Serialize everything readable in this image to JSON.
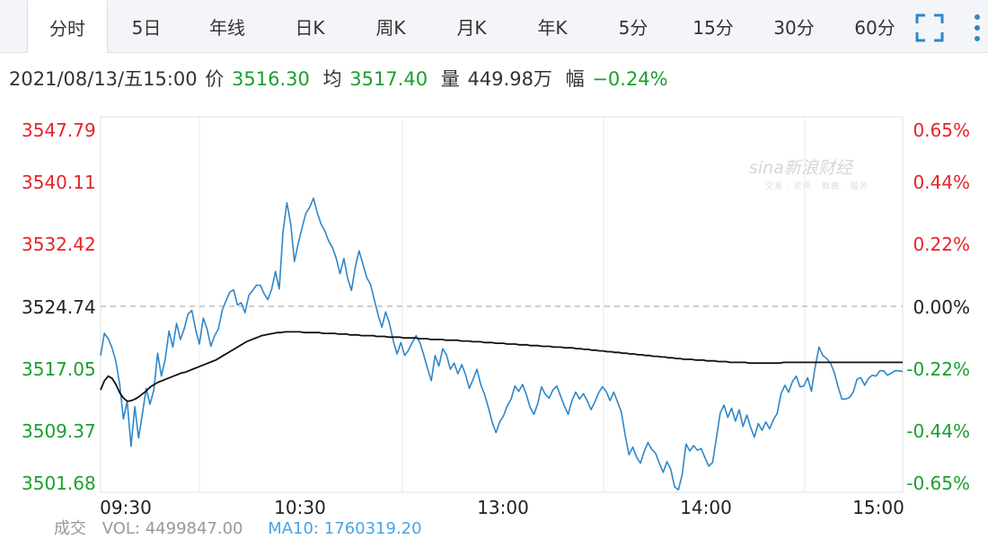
{
  "tabs": [
    {
      "label": "分时",
      "active": true
    },
    {
      "label": "5日"
    },
    {
      "label": "年线"
    },
    {
      "label": "日K"
    },
    {
      "label": "周K"
    },
    {
      "label": "月K"
    },
    {
      "label": "年K"
    },
    {
      "label": "5分"
    },
    {
      "label": "15分"
    },
    {
      "label": "30分"
    },
    {
      "label": "60分"
    }
  ],
  "toolbar": {
    "icons": [
      "fullscreen-icon",
      "more-icon"
    ]
  },
  "info": {
    "datetime": "2021/08/13/五15:00",
    "price_label": "价",
    "price": "3516.30",
    "avg_label": "均",
    "avg": "3517.40",
    "vol_label": "量",
    "vol": "449.98万",
    "chg_label": "幅",
    "chg": "−0.24%"
  },
  "watermark": {
    "text": "sina新浪财经",
    "sub": "交易 · 资讯 · 数据 · 服务"
  },
  "bottom": {
    "label": "成交",
    "vol": "VOL: 4499847.00",
    "ma": "MA10: 1760319.20"
  },
  "colors": {
    "up": "#e5242b",
    "down": "#1a9f2f",
    "price_line": "#2f86c9",
    "avg_line": "#111111",
    "grid": "#e6e6e6"
  },
  "chart_data": {
    "type": "line",
    "prev_close": 3524.74,
    "ylim": [
      3501.68,
      3547.79
    ],
    "y_ticks_left": [
      "3547.79",
      "3540.11",
      "3532.42",
      "3524.74",
      "3517.05",
      "3509.37",
      "3501.68"
    ],
    "y_ticks_right": [
      "0.65%",
      "0.44%",
      "0.22%",
      "0.00%",
      "-0.22%",
      "-0.44%",
      "-0.65%"
    ],
    "x_ticks": [
      "09:30",
      "10:30",
      "13:00",
      "14:00",
      "15:00"
    ],
    "series": [
      {
        "values": [
          3518.3,
          3521.2,
          3520.5,
          3519.3,
          3517.6,
          3514.6,
          3510.0,
          3512.3,
          3506.4,
          3511.6,
          3507.5,
          3510.7,
          3514.0,
          3511.9,
          3513.8,
          3518.6,
          3515.6,
          3517.8,
          3521.5,
          3519.4,
          3522.5,
          3520.4,
          3521.8,
          3523.7,
          3524.2,
          3521.7,
          3519.8,
          3523.2,
          3521.8,
          3519.5,
          3520.9,
          3521.8,
          3524.2,
          3525.5,
          3526.6,
          3526.9,
          3524.9,
          3525.2,
          3523.9,
          3526.2,
          3526.8,
          3527.5,
          3527.5,
          3526.4,
          3525.6,
          3527.0,
          3529.3,
          3527.0,
          3534.5,
          3538.3,
          3535.6,
          3530.6,
          3533.0,
          3535.0,
          3536.9,
          3537.7,
          3538.9,
          3537.0,
          3535.5,
          3534.6,
          3533.3,
          3532.4,
          3531.0,
          3529.0,
          3531.0,
          3528.4,
          3526.8,
          3529.9,
          3532.0,
          3530.3,
          3528.5,
          3527.6,
          3525.6,
          3523.6,
          3522.0,
          3524.0,
          3522.5,
          3520.2,
          3518.5,
          3520.0,
          3518.3,
          3519.0,
          3520.0,
          3520.9,
          3520.0,
          3518.4,
          3516.6,
          3515.0,
          3518.3,
          3516.9,
          3519.2,
          3518.4,
          3516.5,
          3517.3,
          3515.9,
          3517.1,
          3515.8,
          3514.0,
          3515.2,
          3516.5,
          3514.5,
          3513.2,
          3511.5,
          3509.6,
          3508.2,
          3509.6,
          3510.4,
          3511.7,
          3512.6,
          3514.3,
          3513.6,
          3514.5,
          3513.2,
          3511.5,
          3510.6,
          3512.0,
          3514.2,
          3513.2,
          3512.7,
          3513.8,
          3514.3,
          3513.0,
          3511.7,
          3510.6,
          3512.4,
          3513.5,
          3512.6,
          3513.3,
          3512.4,
          3511.2,
          3512.2,
          3513.4,
          3514.2,
          3513.6,
          3512.4,
          3513.5,
          3512.2,
          3510.9,
          3507.9,
          3505.3,
          3506.3,
          3505.0,
          3504.2,
          3505.7,
          3506.9,
          3506.0,
          3505.5,
          3504.2,
          3503.0,
          3504.4,
          3503.4,
          3501.1,
          3500.7,
          3502.7,
          3506.7,
          3505.8,
          3506.5,
          3505.9,
          3506.1,
          3504.9,
          3503.8,
          3504.3,
          3507.5,
          3510.8,
          3511.8,
          3510.2,
          3511.4,
          3509.7,
          3511.2,
          3509.0,
          3510.5,
          3508.9,
          3507.6,
          3509.4,
          3508.5,
          3509.6,
          3508.7,
          3509.9,
          3510.7,
          3513.3,
          3514.4,
          3513.5,
          3514.9,
          3515.6,
          3514.2,
          3514.3,
          3515.4,
          3513.6,
          3516.9,
          3519.4,
          3518.3,
          3517.9,
          3517.3,
          3516.1,
          3514.2,
          3512.6,
          3512.6,
          3512.8,
          3513.5,
          3515.2,
          3515.4,
          3514.4,
          3515.3,
          3515.7,
          3515.6,
          3516.3,
          3516.3,
          3515.7,
          3516.0,
          3516.3,
          3516.3,
          3516.2
        ]
      },
      {
        "values": [
          3513.8,
          3515.0,
          3515.6,
          3515.3,
          3514.5,
          3513.4,
          3512.7,
          3512.3,
          3512.4,
          3512.6,
          3512.9,
          3513.3,
          3513.7,
          3514.2,
          3514.5,
          3514.8,
          3515.0,
          3515.2,
          3515.4,
          3515.6,
          3515.8,
          3516.0,
          3516.1,
          3516.3,
          3516.5,
          3516.7,
          3516.9,
          3517.1,
          3517.3,
          3517.5,
          3517.7,
          3518.0,
          3518.3,
          3518.6,
          3518.9,
          3519.2,
          3519.5,
          3519.8,
          3520.1,
          3520.3,
          3520.5,
          3520.7,
          3520.9,
          3521.0,
          3521.1,
          3521.2,
          3521.3,
          3521.3,
          3521.4,
          3521.4,
          3521.4,
          3521.4,
          3521.4,
          3521.3,
          3521.3,
          3521.3,
          3521.3,
          3521.3,
          3521.2,
          3521.2,
          3521.2,
          3521.2,
          3521.1,
          3521.1,
          3521.1,
          3521.0,
          3521.0,
          3521.0,
          3520.9,
          3520.9,
          3520.9,
          3520.9,
          3520.8,
          3520.8,
          3520.8,
          3520.7,
          3520.7,
          3520.7,
          3520.7,
          3520.6,
          3520.6,
          3520.6,
          3520.6,
          3520.5,
          3520.5,
          3520.5,
          3520.4,
          3520.4,
          3520.4,
          3520.4,
          3520.3,
          3520.3,
          3520.3,
          3520.3,
          3520.2,
          3520.2,
          3520.2,
          3520.1,
          3520.1,
          3520.1,
          3520.0,
          3520.0,
          3520.0,
          3519.9,
          3519.9,
          3519.9,
          3519.8,
          3519.8,
          3519.8,
          3519.7,
          3519.7,
          3519.7,
          3519.6,
          3519.6,
          3519.6,
          3519.5,
          3519.5,
          3519.5,
          3519.4,
          3519.4,
          3519.4,
          3519.3,
          3519.3,
          3519.3,
          3519.2,
          3519.2,
          3519.1,
          3519.1,
          3519.0,
          3519.0,
          3518.9,
          3518.9,
          3518.8,
          3518.8,
          3518.7,
          3518.7,
          3518.6,
          3518.6,
          3518.5,
          3518.5,
          3518.4,
          3518.4,
          3518.3,
          3518.3,
          3518.2,
          3518.2,
          3518.1,
          3518.1,
          3518.0,
          3518.0,
          3517.9,
          3517.9,
          3517.8,
          3517.8,
          3517.8,
          3517.7,
          3517.7,
          3517.7,
          3517.6,
          3517.6,
          3517.6,
          3517.5,
          3517.5,
          3517.5,
          3517.4,
          3517.4,
          3517.4,
          3517.4,
          3517.4,
          3517.3,
          3517.3,
          3517.3,
          3517.3,
          3517.3,
          3517.3,
          3517.3,
          3517.3,
          3517.3,
          3517.4,
          3517.4,
          3517.4,
          3517.4,
          3517.4,
          3517.4,
          3517.4,
          3517.4,
          3517.4,
          3517.4,
          3517.4,
          3517.4,
          3517.4,
          3517.4,
          3517.4,
          3517.4,
          3517.4,
          3517.4,
          3517.4,
          3517.4,
          3517.4,
          3517.4,
          3517.4,
          3517.4,
          3517.4,
          3517.4,
          3517.4,
          3517.4,
          3517.4,
          3517.4,
          3517.4,
          3517.4
        ]
      }
    ]
  }
}
